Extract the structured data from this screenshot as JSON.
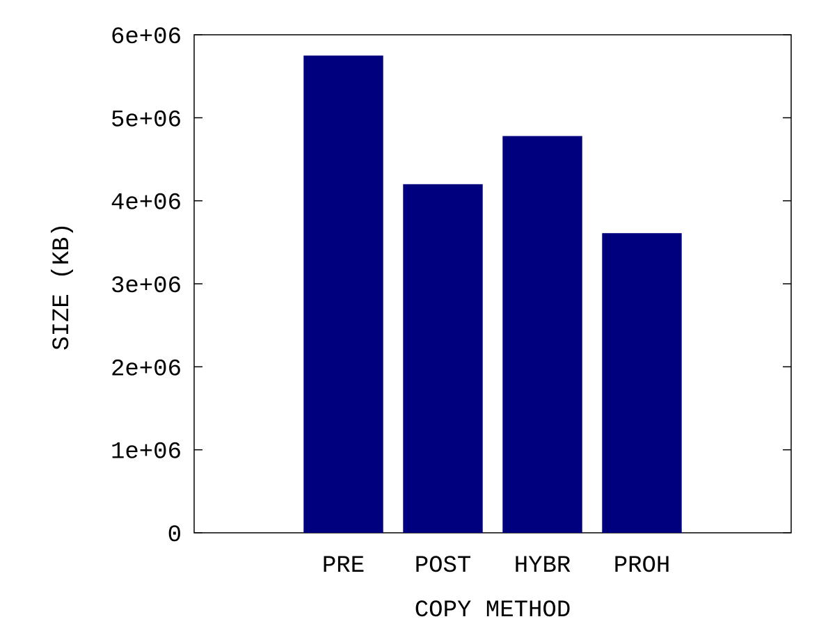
{
  "chart_data": {
    "type": "bar",
    "title": "",
    "xlabel": "COPY METHOD",
    "ylabel": "SIZE (KB)",
    "categories": [
      "PRE",
      "POST",
      "HYBR",
      "PROH"
    ],
    "values": [
      5750000,
      4200000,
      4780000,
      3610000
    ],
    "ylim": [
      0,
      6000000
    ],
    "yticks": [
      {
        "value": 0,
        "label": "0"
      },
      {
        "value": 1000000,
        "label": "1e+06"
      },
      {
        "value": 2000000,
        "label": "2e+06"
      },
      {
        "value": 3000000,
        "label": "3e+06"
      },
      {
        "value": 4000000,
        "label": "4e+06"
      },
      {
        "value": 5000000,
        "label": "5e+06"
      },
      {
        "value": 6000000,
        "label": "6e+06"
      }
    ],
    "grid": false,
    "legend": "none",
    "bar_color": "#00007f"
  }
}
